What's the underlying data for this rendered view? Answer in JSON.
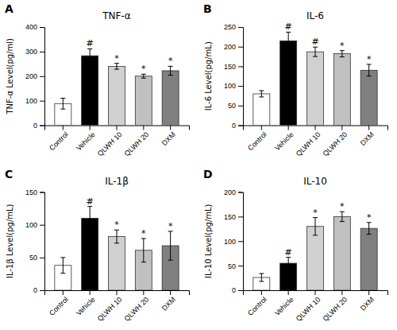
{
  "chart_data": [
    {
      "type": "bar",
      "label": "A",
      "title": "TNF-α",
      "ylabel": "TNF-α Level(pg/ml)",
      "categories": [
        "Control",
        "Vehicle",
        "QLWH 10",
        "QLWH 20",
        "DXM"
      ],
      "values": [
        88,
        283,
        240,
        200,
        222
      ],
      "errors": [
        22,
        28,
        12,
        8,
        18
      ],
      "annotations": [
        null,
        "#",
        "*",
        "*",
        "*"
      ],
      "colors": [
        "white",
        "black",
        "#d0d0d0",
        "#c0c0c0",
        "#808080"
      ],
      "ylim": [
        0,
        400
      ],
      "yticks": [
        0,
        100,
        200,
        300,
        400
      ],
      "grid": false
    },
    {
      "type": "bar",
      "label": "B",
      "title": "IL-6",
      "ylabel": "IL-6 Level(pg/mL)",
      "categories": [
        "Control",
        "Vehicle",
        "QLWH 10",
        "QLWH 20",
        "DXM"
      ],
      "values": [
        80,
        215,
        187,
        182,
        140
      ],
      "errors": [
        8,
        22,
        12,
        8,
        15
      ],
      "annotations": [
        null,
        "#",
        "#",
        "*",
        "*"
      ],
      "colors": [
        "white",
        "black",
        "#d0d0d0",
        "#c0c0c0",
        "#808080"
      ],
      "ylim": [
        0,
        250
      ],
      "yticks": [
        0,
        50,
        100,
        150,
        200,
        250
      ],
      "grid": false
    },
    {
      "type": "bar",
      "label": "C",
      "title": "IL-1β",
      "ylabel": "IL-1β Level(pg/mL)",
      "categories": [
        "Control",
        "Vehicle",
        "QLWH 10",
        "QLWH 20",
        "DXM"
      ],
      "values": [
        38,
        110,
        82,
        61,
        68
      ],
      "errors": [
        12,
        18,
        10,
        18,
        22
      ],
      "annotations": [
        null,
        "#",
        "*",
        "*",
        "*"
      ],
      "colors": [
        "white",
        "black",
        "#d0d0d0",
        "#c0c0c0",
        "#808080"
      ],
      "ylim": [
        0,
        150
      ],
      "yticks": [
        0,
        50,
        100,
        150
      ],
      "grid": false
    },
    {
      "type": "bar",
      "label": "D",
      "title": "IL-10",
      "ylabel": "IL-10 Level(pg/mL)",
      "categories": [
        "Control",
        "Vehicle",
        "QLWH 10",
        "QLWH 20",
        "DXM"
      ],
      "values": [
        26,
        55,
        130,
        150,
        126
      ],
      "errors": [
        8,
        12,
        18,
        10,
        12
      ],
      "annotations": [
        null,
        "#",
        "*",
        "*",
        "*"
      ],
      "colors": [
        "white",
        "black",
        "#d0d0d0",
        "#c0c0c0",
        "#808080"
      ],
      "ylim": [
        0,
        200
      ],
      "yticks": [
        0,
        50,
        100,
        150,
        200
      ],
      "grid": false
    }
  ]
}
